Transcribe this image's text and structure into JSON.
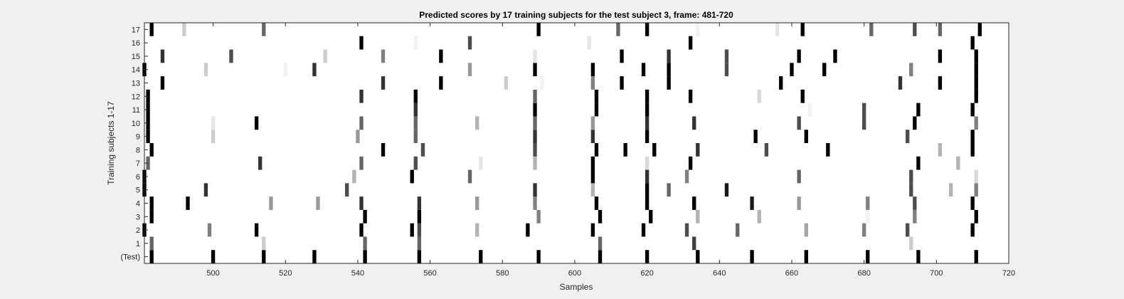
{
  "chart_data": {
    "type": "heatmap",
    "title": "Predicted scores by 17 training subjects for the test subject 3, frame: 481-720",
    "xlabel": "Samples",
    "ylabel": "Training subjects 1-17",
    "xlim": [
      481,
      720
    ],
    "x_ticks": [
      500,
      520,
      540,
      560,
      580,
      600,
      620,
      640,
      660,
      680,
      700,
      720
    ],
    "rows": [
      "(Test)",
      "1",
      "2",
      "3",
      "4",
      "5",
      "6",
      "7",
      "8",
      "9",
      "10",
      "11",
      "12",
      "13",
      "14",
      "15",
      "16",
      "17"
    ],
    "value_scale": "0 = white, 1 = black",
    "series": [
      {
        "row": "(Test)",
        "marks": [
          [
            483,
            1
          ],
          [
            500,
            1
          ],
          [
            514,
            1
          ],
          [
            528,
            1
          ],
          [
            542,
            1
          ],
          [
            557,
            1
          ],
          [
            574,
            1
          ],
          [
            590,
            1
          ],
          [
            607,
            1
          ],
          [
            620,
            1
          ],
          [
            634,
            1
          ],
          [
            649,
            1
          ],
          [
            664,
            1
          ],
          [
            681,
            1
          ],
          [
            695,
            1
          ],
          [
            711,
            1
          ]
        ]
      },
      {
        "row": "1",
        "marks": [
          [
            483,
            0.6
          ],
          [
            514,
            0.2
          ],
          [
            542,
            0.6
          ],
          [
            557,
            0.6
          ],
          [
            607,
            0.6
          ],
          [
            633,
            0.75
          ],
          [
            693,
            0.2
          ]
        ]
      },
      {
        "row": "2",
        "marks": [
          [
            481,
            1
          ],
          [
            499,
            0.5
          ],
          [
            512,
            1
          ],
          [
            541,
            1
          ],
          [
            555,
            1
          ],
          [
            557,
            0.7
          ],
          [
            573,
            0.3
          ],
          [
            587,
            1
          ],
          [
            605,
            1
          ],
          [
            619,
            1
          ],
          [
            631,
            0.7
          ],
          [
            645,
            0.6
          ],
          [
            664,
            0.35
          ],
          [
            680,
            0.5
          ],
          [
            692,
            0.7
          ],
          [
            710,
            1
          ]
        ]
      },
      {
        "row": "3",
        "marks": [
          [
            483,
            1
          ],
          [
            542,
            1
          ],
          [
            557,
            1
          ],
          [
            590,
            0.5
          ],
          [
            607,
            1
          ],
          [
            621,
            1
          ],
          [
            634,
            0.3
          ],
          [
            651,
            0.3
          ],
          [
            681,
            0.05
          ],
          [
            694,
            0.5
          ],
          [
            711,
            1
          ]
        ]
      },
      {
        "row": "4",
        "marks": [
          [
            483,
            1
          ],
          [
            493,
            1
          ],
          [
            516,
            0.4
          ],
          [
            529,
            0.4
          ],
          [
            541,
            0.8
          ],
          [
            557,
            0.8
          ],
          [
            573,
            0.4
          ],
          [
            589,
            0.5
          ],
          [
            606,
            1
          ],
          [
            620,
            1
          ],
          [
            633,
            1
          ],
          [
            649,
            0.9
          ],
          [
            662,
            0.4
          ],
          [
            681,
            0.5
          ],
          [
            694,
            0.7
          ],
          [
            710,
            1
          ]
        ]
      },
      {
        "row": "5",
        "marks": [
          [
            481,
            1
          ],
          [
            498,
            0.8
          ],
          [
            537,
            0.7
          ],
          [
            589,
            0.8
          ],
          [
            605,
            0.3
          ],
          [
            620,
            1
          ],
          [
            626,
            0.6
          ],
          [
            642,
            0.9
          ],
          [
            693,
            0.7
          ],
          [
            704,
            0.3
          ],
          [
            711,
            0.5
          ]
        ]
      },
      {
        "row": "6",
        "marks": [
          [
            481,
            1
          ],
          [
            539,
            0.3
          ],
          [
            555,
            1
          ],
          [
            571,
            0.6
          ],
          [
            605,
            1
          ],
          [
            620,
            0.8
          ],
          [
            631,
            0.5
          ],
          [
            662,
            0.6
          ],
          [
            693,
            0.7
          ],
          [
            711,
            0.15
          ]
        ]
      },
      {
        "row": "7",
        "marks": [
          [
            482,
            0.6
          ],
          [
            513,
            0.8
          ],
          [
            541,
            0.6
          ],
          [
            556,
            0.7
          ],
          [
            574,
            0.1
          ],
          [
            589,
            0.3
          ],
          [
            605,
            1
          ],
          [
            620,
            0.15
          ],
          [
            632,
            1
          ],
          [
            695,
            1
          ],
          [
            706,
            0.3
          ]
        ]
      },
      {
        "row": "8",
        "marks": [
          [
            483,
            1
          ],
          [
            547,
            1
          ],
          [
            558,
            0.7
          ],
          [
            589,
            0.7
          ],
          [
            606,
            1
          ],
          [
            614,
            1
          ],
          [
            622,
            1
          ],
          [
            634,
            0.8
          ],
          [
            653,
            0.7
          ],
          [
            670,
            1
          ],
          [
            701,
            0.3
          ],
          [
            710,
            1
          ]
        ]
      },
      {
        "row": "9",
        "marks": [
          [
            482,
            1
          ],
          [
            500,
            0.2
          ],
          [
            540,
            0.4
          ],
          [
            556,
            0.6
          ],
          [
            589,
            0.8
          ],
          [
            605,
            0.8
          ],
          [
            620,
            1
          ],
          [
            650,
            1
          ],
          [
            664,
            1
          ],
          [
            692,
            0.7
          ],
          [
            710,
            1
          ]
        ]
      },
      {
        "row": "10",
        "marks": [
          [
            482,
            1
          ],
          [
            500,
            0.1
          ],
          [
            512,
            1
          ],
          [
            541,
            0.6
          ],
          [
            556,
            0.6
          ],
          [
            573,
            0.3
          ],
          [
            589,
            0.6
          ],
          [
            605,
            0.4
          ],
          [
            620,
            0.8
          ],
          [
            633,
            0.8
          ],
          [
            662,
            0.7
          ],
          [
            680,
            0.7
          ],
          [
            694,
            1
          ],
          [
            711,
            0.5
          ]
        ]
      },
      {
        "row": "11",
        "marks": [
          [
            482,
            1
          ],
          [
            556,
            0.8
          ],
          [
            589,
            1
          ],
          [
            606,
            1
          ],
          [
            620,
            1
          ],
          [
            665,
            0.05
          ],
          [
            680,
            0.7
          ],
          [
            695,
            1
          ],
          [
            710,
            1
          ]
        ]
      },
      {
        "row": "12",
        "marks": [
          [
            482,
            1
          ],
          [
            541,
            0.8
          ],
          [
            556,
            1
          ],
          [
            589,
            0.6
          ],
          [
            606,
            1
          ],
          [
            620,
            1
          ],
          [
            632,
            1
          ],
          [
            651,
            0.15
          ],
          [
            663,
            1
          ],
          [
            711,
            1
          ]
        ]
      },
      {
        "row": "13",
        "marks": [
          [
            486,
            1
          ],
          [
            547,
            0.8
          ],
          [
            563,
            1
          ],
          [
            581,
            0.2
          ],
          [
            591,
            0.05
          ],
          [
            605,
            0.5
          ],
          [
            613,
            1
          ],
          [
            626,
            1
          ],
          [
            657,
            1
          ],
          [
            690,
            0.8
          ],
          [
            701,
            1
          ],
          [
            711,
            1
          ]
        ]
      },
      {
        "row": "14",
        "marks": [
          [
            481,
            1
          ],
          [
            498,
            0.2
          ],
          [
            520,
            0.05
          ],
          [
            528,
            0.8
          ],
          [
            571,
            0.4
          ],
          [
            589,
            1
          ],
          [
            605,
            1
          ],
          [
            619,
            1
          ],
          [
            626,
            1
          ],
          [
            642,
            0.7
          ],
          [
            660,
            1
          ],
          [
            669,
            1
          ],
          [
            693,
            0.5
          ],
          [
            711,
            1
          ]
        ]
      },
      {
        "row": "15",
        "marks": [
          [
            486,
            0.8
          ],
          [
            505,
            0.7
          ],
          [
            531,
            0.2
          ],
          [
            547,
            0.5
          ],
          [
            563,
            1
          ],
          [
            589,
            0.1
          ],
          [
            613,
            1
          ],
          [
            626,
            0.8
          ],
          [
            642,
            0.7
          ],
          [
            662,
            1
          ],
          [
            672,
            1
          ],
          [
            701,
            1
          ],
          [
            711,
            1
          ]
        ]
      },
      {
        "row": "16",
        "marks": [
          [
            541,
            1
          ],
          [
            556,
            0.05
          ],
          [
            571,
            0.7
          ],
          [
            604,
            0.1
          ],
          [
            632,
            1
          ],
          [
            710,
            1
          ]
        ]
      },
      {
        "row": "17",
        "marks": [
          [
            483,
            1
          ],
          [
            492,
            0.2
          ],
          [
            514,
            0.6
          ],
          [
            590,
            1
          ],
          [
            612,
            0.6
          ],
          [
            620,
            1
          ],
          [
            634,
            0.05
          ],
          [
            656,
            0.1
          ],
          [
            663,
            1
          ],
          [
            682,
            0.6
          ],
          [
            694,
            0.7
          ],
          [
            701,
            0.6
          ],
          [
            712,
            1
          ]
        ]
      }
    ]
  }
}
